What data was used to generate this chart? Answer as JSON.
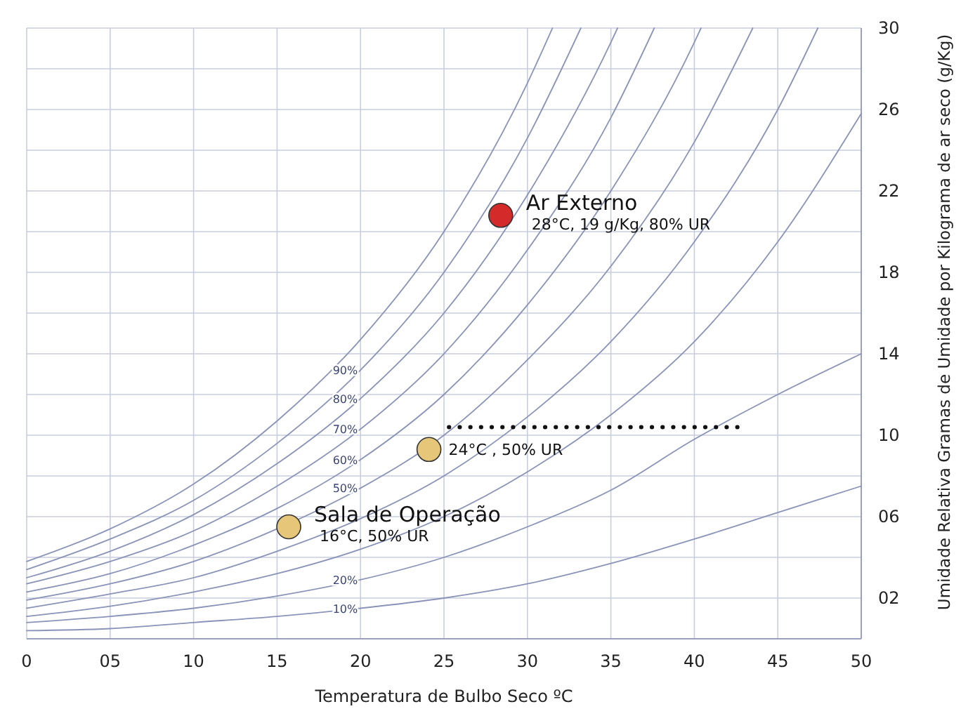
{
  "chart_data": {
    "type": "line",
    "xlabel": "Temperatura de Bulbo Seco  ºC",
    "ylabel": "Umidade Relativa Gramas de Umidade por Kilograma de ar seco (g/Kg)",
    "xlim": [
      0,
      50
    ],
    "ylim": [
      0,
      30
    ],
    "xticks": [
      0,
      {
        "value": 5,
        "label": "05"
      },
      10,
      15,
      20,
      25,
      30,
      35,
      40,
      45,
      50
    ],
    "yticks": [
      {
        "value": 2,
        "label": "02"
      },
      {
        "value": 4,
        "label": null
      },
      {
        "value": 6,
        "label": "06"
      },
      {
        "value": 8,
        "label": null
      },
      10,
      {
        "value": 12,
        "label": null
      },
      14,
      {
        "value": 16,
        "label": null
      },
      18,
      {
        "value": 20,
        "label": null
      },
      22,
      {
        "value": 24,
        "label": null
      },
      26,
      {
        "value": 28,
        "label": null
      },
      30
    ],
    "grid": true,
    "line_style": "solid",
    "marker": "none",
    "series": [
      {
        "color": "#8a93b8",
        "x": [
          0,
          5,
          10,
          15,
          20,
          25,
          30,
          31.5
        ],
        "values": [
          3.8,
          5.4,
          7.6,
          10.7,
          14.7,
          20,
          27.3,
          30
        ]
      },
      {
        "name": "90%",
        "color": "#8a93b8",
        "x": [
          0,
          5,
          10,
          15,
          20,
          25,
          30,
          33.2
        ],
        "values": [
          3.4,
          4.9,
          6.8,
          9.6,
          13.2,
          18,
          24.6,
          30
        ]
      },
      {
        "name": "80%",
        "color": "#8a93b8",
        "x": [
          0,
          5,
          10,
          15,
          20,
          25,
          30,
          35,
          35.4
        ],
        "values": [
          3,
          4.3,
          6.1,
          8.6,
          11.8,
          16,
          21.8,
          29.3,
          30
        ]
      },
      {
        "name": "70%",
        "color": "#8a93b8",
        "x": [
          0,
          5,
          10,
          15,
          20,
          25,
          30,
          35,
          37.6
        ],
        "values": [
          2.7,
          3.8,
          5.3,
          7.5,
          10.3,
          14,
          19.1,
          25.6,
          30
        ]
      },
      {
        "name": "60%",
        "color": "#8a93b8",
        "x": [
          0,
          5,
          10,
          15,
          20,
          25,
          30,
          35,
          40,
          40.4
        ],
        "values": [
          2.3,
          3.2,
          4.6,
          6.4,
          8.8,
          12,
          16.4,
          22,
          29.3,
          30
        ]
      },
      {
        "name": "50%",
        "color": "#8a93b8",
        "x": [
          0,
          5,
          10,
          15,
          20,
          25,
          30,
          35,
          40,
          43.5
        ],
        "values": [
          1.9,
          2.7,
          3.8,
          5.4,
          7.4,
          10,
          13.7,
          18.3,
          24.4,
          30
        ]
      },
      {
        "color": "#8a93b8",
        "x": [
          0,
          5,
          10,
          15,
          20,
          25,
          30,
          35,
          40,
          45,
          47.4
        ],
        "values": [
          1.5,
          2.2,
          3,
          4.3,
          5.9,
          8,
          10.9,
          14.6,
          19.5,
          26,
          30
        ]
      },
      {
        "color": "#8a93b8",
        "x": [
          0,
          5,
          10,
          15,
          20,
          25,
          30,
          35,
          40,
          45,
          50
        ],
        "values": [
          1.1,
          1.6,
          2.3,
          3.2,
          4.4,
          6,
          8.2,
          11,
          14.6,
          19.5,
          25.8
        ]
      },
      {
        "name": "20%",
        "color": "#8a93b8",
        "x": [
          0,
          5,
          10,
          15,
          20,
          25,
          30,
          35,
          40,
          45,
          50
        ],
        "values": [
          0.8,
          1.1,
          1.5,
          2.1,
          2.9,
          4,
          5.5,
          7.3,
          9.8,
          12,
          14
        ]
      },
      {
        "name": "10%",
        "color": "#8a93b8",
        "x": [
          0,
          5,
          10,
          15,
          20,
          25,
          30,
          35,
          40,
          45,
          50
        ],
        "values": [
          0.4,
          0.5,
          0.8,
          1.1,
          1.5,
          2,
          2.7,
          3.7,
          4.9,
          6.2,
          7.5
        ]
      },
      {
        "type": "line",
        "color": "#111111",
        "line_style": "dotted",
        "x": [
          25.3,
          42.8
        ],
        "values": [
          10.4,
          10.4
        ]
      },
      {
        "type": "scatter",
        "marker": "circle",
        "x": [
          28.4,
          24.1,
          15.7
        ],
        "values": [
          20.8,
          9.3,
          5.5
        ],
        "colors": [
          "#d42a2a",
          "#e6c77a",
          "#e6c77a"
        ]
      }
    ],
    "annotations": [
      {
        "text": "Ar Externo\n28°C, 19 g/Kg, 80% UR",
        "x": 28.4,
        "y": 20.8
      },
      {
        "text": "24°C , 50% UR",
        "x": 24.1,
        "y": 9.3
      },
      {
        "text": "Sala de Operação\n16°C, 50% UR",
        "x": 15.7,
        "y": 5.5
      }
    ]
  }
}
